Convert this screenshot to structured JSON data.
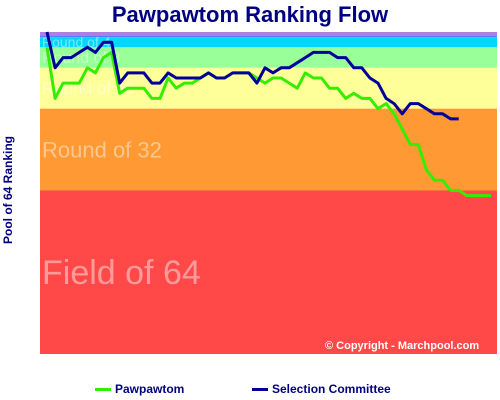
{
  "chart_data": {
    "type": "line",
    "title": "Pawpawtom Ranking Flow",
    "ylabel": "Pool of 64 Ranking",
    "xlabel": "",
    "ylim": [
      64,
      1
    ],
    "grid": false,
    "legend_position": "bottom",
    "bands": [
      {
        "label": "",
        "from": 1,
        "to": 1,
        "color": "#b07ee0"
      },
      {
        "label": "",
        "from": 1,
        "to": 2,
        "color": "#4f7fff"
      },
      {
        "label": "Round of 4",
        "from": 2,
        "to": 4,
        "color": "#00d7ff"
      },
      {
        "label": "Round of 8",
        "from": 4,
        "to": 8,
        "color": "#99ff99"
      },
      {
        "label": "Round of 16",
        "from": 8,
        "to": 16,
        "color": "#ffff99"
      },
      {
        "label": "Round of 32",
        "from": 16,
        "to": 32,
        "color": "#ff9933"
      },
      {
        "label": "Field of 64",
        "from": 32,
        "to": 64,
        "color": "#ff4848"
      }
    ],
    "series": [
      {
        "name": "Pawpawtom",
        "color": "#33ee00",
        "values": [
          4,
          14,
          11,
          11,
          11,
          8,
          9,
          6,
          5,
          13,
          12,
          12,
          12,
          14,
          14,
          10,
          12,
          11,
          11,
          10,
          9,
          10,
          10,
          9,
          9,
          9,
          10,
          11,
          10,
          10,
          11,
          12,
          9,
          10,
          10,
          12,
          12,
          14,
          13,
          14,
          14,
          16,
          15,
          17,
          20,
          23,
          23,
          28,
          30,
          30,
          32,
          32,
          33,
          33,
          33,
          33
        ]
      },
      {
        "name": "Selection Committee",
        "color": "#000099",
        "values": [
          1,
          8,
          6,
          6,
          5,
          4,
          5,
          3,
          3,
          11,
          9,
          9,
          9,
          11,
          11,
          9,
          10,
          10,
          10,
          10,
          9,
          10,
          10,
          9,
          9,
          9,
          11,
          8,
          9,
          8,
          8,
          7,
          6,
          5,
          5,
          5,
          6,
          6,
          8,
          8,
          10,
          11,
          14,
          15,
          17,
          15,
          15,
          16,
          17,
          17,
          18,
          18
        ]
      }
    ]
  },
  "copyright": "© Copyright - Marchpool.com"
}
